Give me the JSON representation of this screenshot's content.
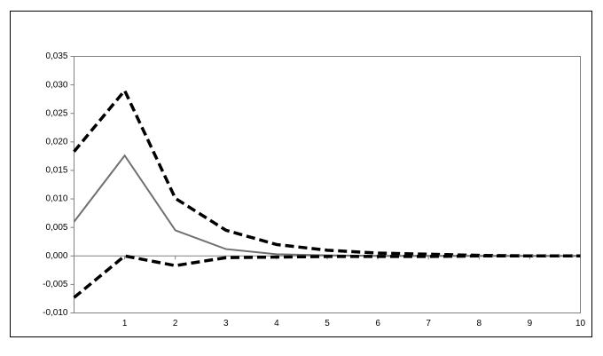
{
  "chart_data": {
    "type": "line",
    "x": [
      0,
      1,
      2,
      3,
      4,
      5,
      6,
      7,
      8,
      9,
      10
    ],
    "xlim": [
      0,
      10
    ],
    "xticks": [
      1,
      2,
      3,
      4,
      5,
      6,
      7,
      8,
      9,
      10
    ],
    "ylim": [
      -0.01,
      0.035
    ],
    "yticks": [
      {
        "value": -0.01,
        "label": "-0,010"
      },
      {
        "value": -0.005,
        "label": "-0,005"
      },
      {
        "value": 0,
        "label": "0,000"
      },
      {
        "value": 0.005,
        "label": "0,005"
      },
      {
        "value": 0.01,
        "label": "0,010"
      },
      {
        "value": 0.015,
        "label": "0,015"
      },
      {
        "value": 0.02,
        "label": "0,020"
      },
      {
        "value": 0.025,
        "label": "0,025"
      },
      {
        "value": 0.03,
        "label": "0,030"
      },
      {
        "value": 0.035,
        "label": "0,035"
      }
    ],
    "grid": false,
    "series": [
      {
        "color": "#000000",
        "dashed": true,
        "values": [
          0.0183,
          0.029,
          0.0101,
          0.0045,
          0.002,
          0.001,
          0.0005,
          0.0003,
          0.0001,
          0.0,
          0.0
        ]
      },
      {
        "color": "#707070",
        "dashed": false,
        "values": [
          0.006,
          0.0176,
          0.0045,
          0.0012,
          0.0003,
          0.0001,
          0.0,
          0.0,
          0.0,
          0.0,
          0.0
        ]
      },
      {
        "color": "#000000",
        "dashed": true,
        "values": [
          -0.0073,
          0.0,
          -0.0017,
          -0.0003,
          -0.0002,
          -0.0001,
          -0.0001,
          -0.0001,
          0.0,
          0.0,
          0.0
        ]
      }
    ]
  }
}
